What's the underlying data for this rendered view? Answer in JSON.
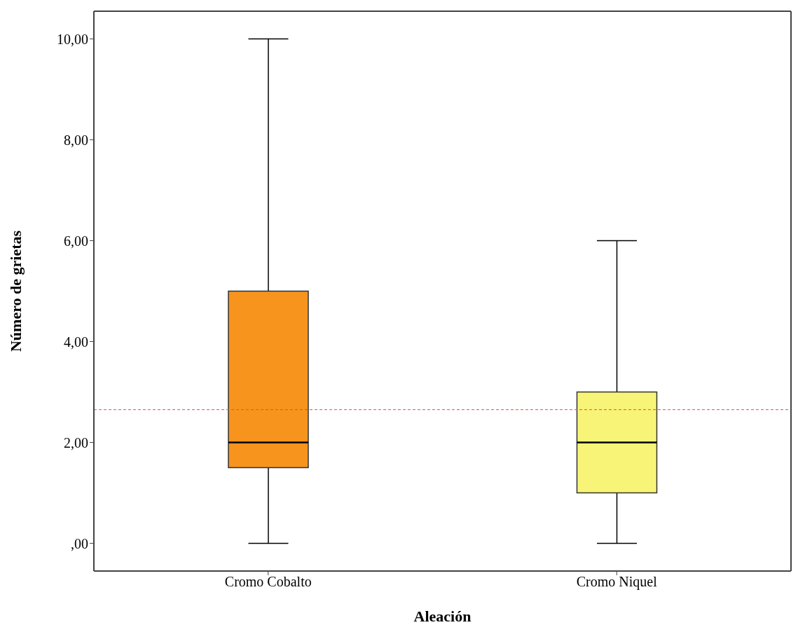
{
  "chart_data": {
    "type": "box",
    "xlabel": "Aleación",
    "ylabel": "Número de grietas",
    "categories": [
      "Cromo Cobalto",
      "Cromo Niquel"
    ],
    "boxes": [
      {
        "low": 0,
        "q1": 1.5,
        "median": 2,
        "q3": 5,
        "high": 10
      },
      {
        "low": 0,
        "q1": 1,
        "median": 2,
        "q3": 3,
        "high": 6
      }
    ],
    "colors": [
      "#f7941d",
      "#f8f477"
    ],
    "ylim": [
      -0.55,
      10.55
    ],
    "yticks": [
      {
        "value": 0,
        "label": ",00"
      },
      {
        "value": 2,
        "label": "2,00"
      },
      {
        "value": 4,
        "label": "4,00"
      },
      {
        "value": 6,
        "label": "6,00"
      },
      {
        "value": 8,
        "label": "8,00"
      },
      {
        "value": 10,
        "label": "10,00"
      }
    ],
    "ref_lines": [
      {
        "axis": "y",
        "value": 2.65,
        "label": null,
        "color": "#ff4040",
        "line_style": "dashed"
      }
    ]
  }
}
